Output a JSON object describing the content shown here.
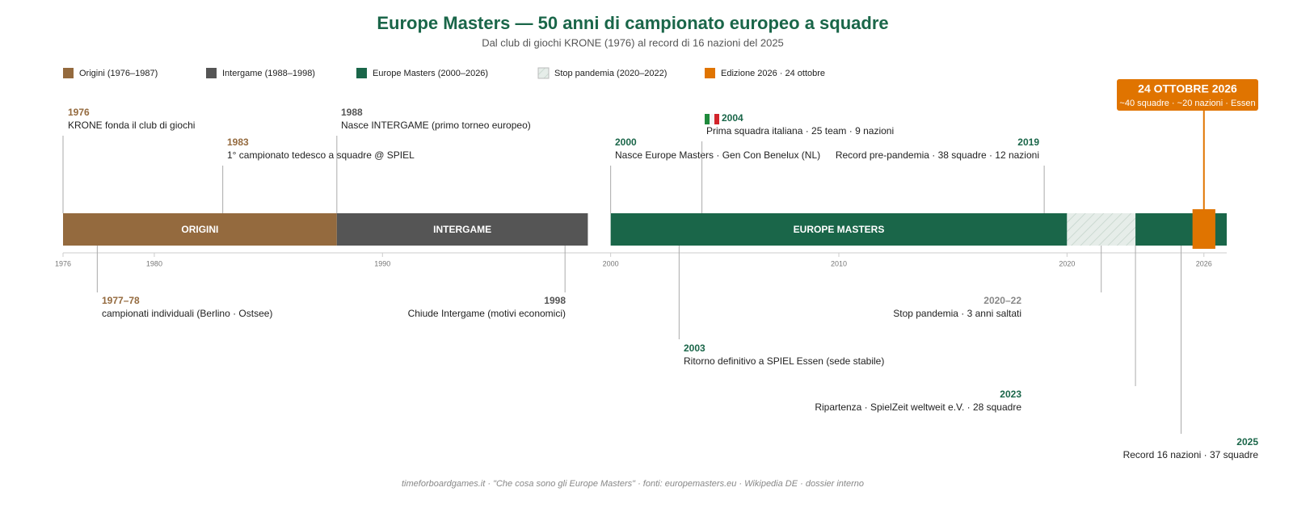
{
  "chart_data": {
    "type": "timeline",
    "title": "Europe Masters — 50 anni di campionato europeo a squadre",
    "subtitle": "Dal club di giochi KRONE (1976) al record di 16 nazioni del 2025",
    "xlim": [
      1976,
      2027
    ],
    "xticks": [
      1976,
      1980,
      1990,
      2000,
      2010,
      2020,
      2026
    ],
    "legend": [
      {
        "label": "Origini (1976–1987)",
        "color": "#946a3e"
      },
      {
        "label": "Intergame (1988–1998)",
        "color": "#555555"
      },
      {
        "label": "Europe Masters (2000–2026)",
        "color": "#1a6649"
      },
      {
        "label": "Stop pandemia (2020–2022)",
        "color": "#dfe8e3",
        "hatch": true
      },
      {
        "label": "Edizione 2026 · 24 ottobre",
        "color": "#e07400"
      }
    ],
    "periods": [
      {
        "name": "ORIGINI",
        "start": 1976,
        "end": 1988,
        "color": "#946a3e"
      },
      {
        "name": "INTERGAME",
        "start": 1988,
        "end": 1999,
        "color": "#555555"
      },
      {
        "name": "EUROPE MASTERS",
        "start": 2000,
        "end": 2020,
        "color": "#1a6649"
      },
      {
        "start": 2020,
        "end": 2023,
        "color": "#dfe8e3",
        "hatch": true
      },
      {
        "start": 2023,
        "end": 2027,
        "color": "#1a6649"
      }
    ],
    "events": [
      {
        "x": 1976,
        "year": "1976",
        "text": "KRONE fonda il club di giochi",
        "color": "#946a3e"
      },
      {
        "x": 1983,
        "year": "1983",
        "text": "1° campionato tedesco a squadre @ SPIEL",
        "color": "#946a3e"
      },
      {
        "x": 1988,
        "year": "1988",
        "text": "Nasce INTERGAME (primo torneo europeo)",
        "color": "#555555"
      },
      {
        "x": 2000,
        "year": "2000",
        "text": "Nasce Europe Masters · Gen Con Benelux (NL)",
        "color": "#1a6649"
      },
      {
        "x": 2004,
        "year": "2004",
        "text": "Prima squadra italiana · 25 team · 9 nazioni",
        "color": "#1a6649"
      },
      {
        "x": 2019,
        "year": "2019",
        "text": "Record pre-pandemia · 38 squadre · 12 nazioni",
        "color": "#1a6649"
      },
      {
        "x": 1977.5,
        "year": "1977–78",
        "text": "campionati individuali (Berlino · Ostsee)",
        "color": "#946a3e"
      },
      {
        "x": 1998,
        "year": "1998",
        "text": "Chiude Intergame (motivi economici)",
        "color": "#555555"
      },
      {
        "x": 2003,
        "year": "2003",
        "text": "Ritorno definitivo a SPIEL Essen (sede stabile)",
        "color": "#1a6649"
      },
      {
        "x": 2021.5,
        "year": "2020–22",
        "text": "Stop pandemia · 3 anni saltati",
        "color": "#888888"
      },
      {
        "x": 2023,
        "year": "2023",
        "text": "Ripartenza · SpielZeit weltweit e.V. · 28 squadre",
        "color": "#1a6649"
      },
      {
        "x": 2025,
        "year": "2025",
        "text": "Record 16 nazioni · 37 squadre",
        "color": "#1a6649"
      }
    ],
    "highlight": {
      "x": 2026,
      "start": 2025.5,
      "end": 2026.5,
      "title": "24 OTTOBRE 2026",
      "text": "~40 squadre · ~20 nazioni · Essen",
      "color": "#e07400"
    },
    "source": "timeforboardgames.it · \"Che cosa sono gli Europe Masters\" · fonti: europemasters.eu · Wikipedia DE · dossier interno"
  }
}
